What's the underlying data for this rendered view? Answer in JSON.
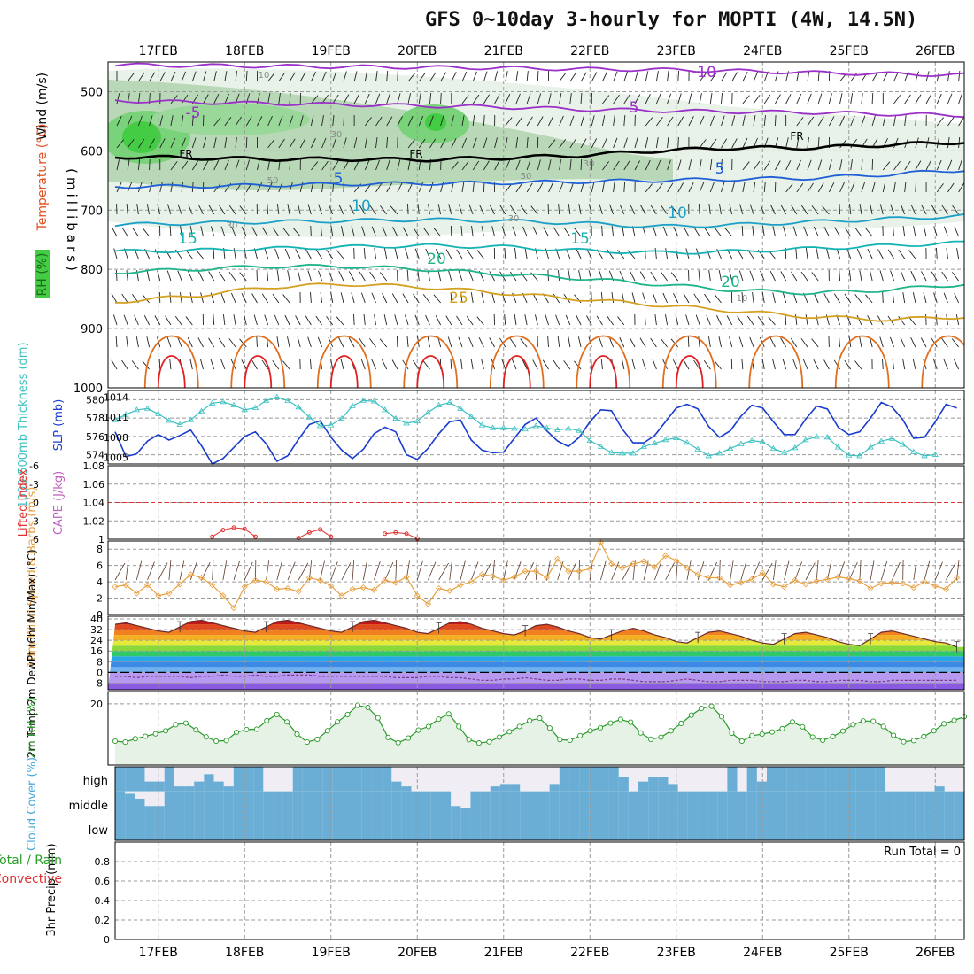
{
  "title": "GFS 0~10day 3-hourly for MOPTI (4W, 14.5N)",
  "colors": {
    "temp_cold": "#9b30c8",
    "temp_cool": "#1f5fd6",
    "temp_mild": "#1ca0c8",
    "temp_15": "#15b3b3",
    "temp_20": "#1fb38a",
    "temp_25": "#d4a020",
    "temp_warm": "#e07020",
    "temp_hot": "#e02020",
    "freezing": "#000000",
    "rh_light": "#e8f2e8",
    "rh_mid": "#b8d8b8",
    "rh_high": "#44cc44",
    "thickness": "#1a3ccc",
    "slp": "#3cc0c0",
    "wind10": "#e8a040",
    "rh2m": "#2a9a2a",
    "cloud": "#6aaed6",
    "cloud_clear": "#f0eef4"
  },
  "chart_data": [
    {
      "type": "line",
      "panel": "upper-air",
      "xlabel": "",
      "ylabel": "(millibars)",
      "legend_labels": [
        "Wind (m/s)",
        "Temperature (°C)",
        "RH (%)"
      ],
      "y_ticks": [
        500,
        600,
        700,
        800,
        900,
        1000
      ],
      "ylim": [
        1000,
        450
      ],
      "x_ticks": [
        "17FEB",
        "18FEB",
        "19FEB",
        "20FEB",
        "21FEB",
        "22FEB",
        "23FEB",
        "24FEB",
        "25FEB",
        "26FEB"
      ],
      "contour_labels": [
        "-10",
        "-5",
        "FR",
        "5",
        "10",
        "15",
        "20",
        "25"
      ],
      "rh_labels": [
        "10",
        "30",
        "50"
      ],
      "isotherms": [
        {
          "name": "-10",
          "values": [
            455,
            456,
            457,
            458,
            459,
            460,
            462,
            463,
            465,
            468,
            470,
            472
          ]
        },
        {
          "name": "-5",
          "values": [
            515,
            518,
            520,
            522,
            524,
            526,
            530,
            532,
            534,
            535,
            538,
            540
          ]
        },
        {
          "name": "FR",
          "values": [
            610,
            612,
            614,
            614,
            615,
            612,
            608,
            600,
            595,
            595,
            590,
            585
          ]
        },
        {
          "name": "5",
          "values": [
            660,
            660,
            658,
            656,
            655,
            654,
            652,
            650,
            648,
            646,
            640,
            632
          ]
        },
        {
          "name": "10",
          "values": [
            725,
            722,
            720,
            718,
            716,
            718,
            722,
            728,
            725,
            720,
            715,
            710
          ]
        },
        {
          "name": "15",
          "values": [
            770,
            768,
            765,
            762,
            760,
            762,
            768,
            772,
            770,
            765,
            760,
            755
          ]
        },
        {
          "name": "20",
          "values": [
            805,
            800,
            795,
            795,
            800,
            808,
            815,
            825,
            835,
            840,
            835,
            825
          ]
        },
        {
          "name": "25",
          "values": [
            855,
            845,
            830,
            825,
            830,
            840,
            850,
            860,
            870,
            880,
            885,
            880
          ]
        }
      ]
    },
    {
      "type": "line",
      "panel": "thickness-slp",
      "left_label": "1000-500mb Thickness (dm)",
      "right_label": "SLP (mb)",
      "left_ticks": [
        574,
        576,
        578,
        580
      ],
      "left_lim": [
        573,
        581
      ],
      "right_ticks": [
        1005,
        1008,
        1011,
        1014
      ],
      "right_lim": [
        1004,
        1015
      ],
      "series": [
        {
          "name": "1000-500mb Thickness (dm)",
          "axis": "left",
          "values": [
            576.5,
            573.8,
            574.1,
            575.5,
            576.2,
            575.6,
            576.1,
            576.7,
            575.0,
            573.0,
            573.6,
            574.8,
            576.0,
            576.5,
            575.2,
            573.3,
            573.9,
            575.7,
            577.3,
            577.7,
            575.9,
            574.5,
            573.6,
            574.6,
            576.3,
            577.0,
            576.5,
            574.0,
            573.5,
            574.7,
            576.3,
            577.6,
            577.8,
            575.6,
            574.5,
            574.2,
            574.3,
            575.8,
            577.3,
            578.0,
            576.6,
            575.5,
            574.9,
            575.9,
            577.6,
            578.9,
            578.8,
            576.8,
            575.3,
            575.3,
            576.1,
            577.6,
            579.1,
            579.5,
            579.0,
            577.1,
            575.9,
            576.6,
            578.2,
            579.4,
            579.1,
            577.6,
            576.2,
            576.2,
            577.9,
            579.3,
            579.0,
            577.0,
            576.2,
            576.5,
            578.0,
            579.7,
            579.2,
            577.8,
            575.8,
            575.9,
            577.6,
            579.5,
            579.1
          ]
        },
        {
          "name": "SLP (mb)",
          "axis": "right",
          "marker": "triangle",
          "values": [
            1010.6,
            1011.4,
            1012.1,
            1012.3,
            1011.5,
            1010.5,
            1009.9,
            1010.6,
            1011.9,
            1013.1,
            1013.3,
            1012.8,
            1012.1,
            1012.4,
            1013.5,
            1014.0,
            1013.5,
            1012.5,
            1011.0,
            1009.7,
            1009.8,
            1010.8,
            1012.7,
            1013.5,
            1013.4,
            1012.1,
            1010.8,
            1010.1,
            1010.4,
            1011.7,
            1012.8,
            1013.2,
            1012.3,
            1011.1,
            1009.8,
            1009.4,
            1009.4,
            1009.3,
            1009.2,
            1009.7,
            1009.4,
            1009.1,
            1009.3,
            1009.0,
            1007.5,
            1006.6,
            1005.7,
            1005.6,
            1005.6,
            1006.6,
            1007.1,
            1007.6,
            1007.9,
            1007.2,
            1006.2,
            1005.2,
            1005.6,
            1006.3,
            1007.0,
            1007.5,
            1007.3,
            1006.3,
            1005.7,
            1006.4,
            1007.6,
            1008.1,
            1008.0,
            1006.5,
            1005.3,
            1005.2,
            1006.5,
            1007.4,
            1007.8,
            1006.9,
            1005.8,
            1005.2,
            1005.4
          ]
        }
      ]
    },
    {
      "type": "line",
      "panel": "stability",
      "left_label": "Lifted Index",
      "right_label": "CAPE (J/kg)",
      "left_ticks": [
        "-6",
        "-3",
        "0",
        "3",
        "6"
      ],
      "left_lim": [
        6,
        -6
      ],
      "right_ticks": [
        "1",
        "1.02",
        "1.04",
        "1.06",
        "1.08"
      ],
      "right_lim": [
        1,
        1.08
      ],
      "series": [
        {
          "name": "Lifted Index",
          "axis": "left",
          "segments": [
            {
              "x_start": 9,
              "values": [
                5.6,
                4.5,
                4.1,
                4.3,
                5.6
              ]
            },
            {
              "x_start": 17,
              "values": [
                5.8,
                4.9,
                4.4,
                5.6
              ]
            },
            {
              "x_start": 25,
              "values": [
                5.1,
                4.9,
                5.1,
                5.9
              ]
            }
          ]
        }
      ]
    },
    {
      "type": "line",
      "panel": "wind10m",
      "ylabel": "10m Wind Speed & Barbs (m/s)",
      "y_ticks": [
        0,
        2,
        4,
        6,
        8
      ],
      "ylim": [
        0,
        9
      ],
      "series": [
        {
          "name": "10m Wind Speed",
          "marker": "diamond",
          "values": [
            3.4,
            3.6,
            2.6,
            3.6,
            2.3,
            2.6,
            3.7,
            4.9,
            4.5,
            3.6,
            2.3,
            0.8,
            3.4,
            4.2,
            4.0,
            3.1,
            3.2,
            2.8,
            4.5,
            4.2,
            3.5,
            2.3,
            3.1,
            3.3,
            3.0,
            4.2,
            3.9,
            4.6,
            2.3,
            1.3,
            3.2,
            2.9,
            3.6,
            4.0,
            4.9,
            4.7,
            4.2,
            4.6,
            5.3,
            5.3,
            4.5,
            6.8,
            5.3,
            5.3,
            5.6,
            8.8,
            6.2,
            5.7,
            6.2,
            6.5,
            5.8,
            7.2,
            6.6,
            5.7,
            4.9,
            4.5,
            4.5,
            3.6,
            3.9,
            4.3,
            5.1,
            3.7,
            3.4,
            4.2,
            3.7,
            4.1,
            4.3,
            4.6,
            4.4,
            4.1,
            3.2,
            3.8,
            3.9,
            3.8,
            3.3,
            4.0,
            3.5,
            3.1,
            4.5
          ]
        }
      ]
    },
    {
      "type": "area",
      "panel": "temperature",
      "ylabel": "2m Temp 2m DewPt (6hr Min/Max) (°C)",
      "y_ticks": [
        -8,
        0,
        8,
        16,
        24,
        32,
        40
      ],
      "ylim": [
        -13,
        42
      ],
      "series": [
        {
          "name": "2m Temp",
          "values": [
            36,
            37,
            35,
            33,
            31,
            30,
            34,
            38,
            39,
            37,
            35,
            33,
            31,
            30,
            34,
            38,
            39,
            37,
            35,
            33,
            31,
            30,
            34,
            38,
            39,
            37,
            35,
            33,
            30,
            29,
            33,
            37,
            38,
            36,
            33,
            31,
            29,
            28,
            31,
            35,
            36,
            34,
            31,
            29,
            26,
            25,
            28,
            31,
            33,
            31,
            28,
            26,
            23,
            22,
            26,
            30,
            31,
            29,
            27,
            24,
            22,
            21,
            25,
            29,
            30,
            28,
            26,
            23,
            21,
            20,
            25,
            30,
            31,
            29,
            27,
            25,
            23,
            22,
            19
          ]
        },
        {
          "name": "2m DewPt",
          "values": [
            -3,
            -3,
            -4,
            -3,
            -3,
            -3,
            -3,
            -4,
            -3,
            -3,
            -2,
            -3,
            -3,
            -2,
            -3,
            -3,
            -2,
            -2,
            -2,
            -3,
            -3,
            -3,
            -3,
            -3,
            -3,
            -3,
            -4,
            -4,
            -4,
            -3,
            -3,
            -4,
            -4,
            -5,
            -6,
            -6,
            -5,
            -5,
            -4,
            -5,
            -6,
            -6,
            -5,
            -5,
            -6,
            -6,
            -5,
            -5,
            -6,
            -7,
            -7,
            -7,
            -6,
            -5,
            -6,
            -7,
            -7,
            -6,
            -6,
            -6,
            -7,
            -7,
            -7,
            -6,
            -6,
            -7,
            -7,
            -6,
            -6,
            -6,
            -7,
            -7,
            -6,
            -6,
            -6,
            -6,
            -6,
            -6,
            -6
          ]
        }
      ]
    },
    {
      "type": "area",
      "panel": "rh2m",
      "ylabel": "2m RH (%)",
      "y_ticks": [
        20
      ],
      "ylim": [
        0,
        24
      ],
      "series": [
        {
          "name": "2m RH",
          "marker": "circle",
          "values": [
            7.8,
            7.5,
            8.6,
            9.4,
            10.2,
            11.2,
            13.2,
            13.7,
            11.5,
            9.2,
            7.8,
            8.0,
            10.7,
            11.6,
            11.7,
            14.5,
            16.5,
            14.1,
            10.1,
            7.5,
            8.4,
            11.2,
            14.1,
            16.5,
            19.5,
            18.8,
            15.4,
            9.0,
            7.3,
            8.8,
            11.4,
            12.6,
            15.0,
            16.7,
            12.6,
            8.3,
            7.2,
            7.6,
            9.1,
            10.9,
            12.6,
            14.5,
            15.3,
            12.1,
            8.3,
            8.1,
            9.6,
            11.2,
            12.2,
            13.7,
            14.9,
            14.0,
            10.5,
            8.4,
            9.1,
            11.2,
            13.6,
            16.3,
            18.5,
            19.2,
            15.8,
            10.4,
            7.8,
            9.6,
            10.1,
            10.8,
            11.9,
            14.1,
            12.5,
            9.1,
            8.1,
            9.3,
            11.1,
            13.2,
            14.4,
            14.3,
            12.6,
            9.7,
            7.6,
            8.0,
            9.3,
            11.2,
            13.5,
            14.6,
            15.8
          ]
        }
      ]
    },
    {
      "type": "heatmap",
      "panel": "cloud-cover",
      "ylabel": "Cloud Cover (%)",
      "rows": [
        "high",
        "middle",
        "low"
      ],
      "high_row": [
        100,
        100,
        100,
        40,
        40,
        100,
        20,
        20,
        40,
        70,
        40,
        20,
        100,
        100,
        100,
        0,
        0,
        0,
        100,
        100,
        100,
        100,
        100,
        100,
        100,
        100,
        100,
        100,
        40,
        20,
        0,
        0,
        0,
        0,
        0,
        0,
        0,
        0,
        20,
        30,
        30,
        0,
        0,
        0,
        30,
        100,
        100,
        100,
        100,
        100,
        100,
        60,
        0,
        40,
        60,
        60,
        30,
        0,
        0,
        0,
        0,
        0,
        100,
        0,
        100,
        40,
        100,
        100,
        100,
        100,
        100,
        100,
        100,
        100,
        100,
        100,
        100,
        100,
        0,
        0,
        0,
        0,
        0,
        20,
        0,
        0
      ],
      "middle_row": [
        100,
        90,
        70,
        40,
        40,
        100,
        100,
        100,
        100,
        100,
        100,
        100,
        100,
        100,
        100,
        100,
        100,
        100,
        100,
        100,
        100,
        100,
        100,
        100,
        100,
        100,
        100,
        100,
        100,
        100,
        100,
        100,
        100,
        100,
        40,
        30,
        100,
        100,
        100,
        100,
        100,
        100,
        100,
        100,
        100,
        100,
        100,
        100,
        100,
        100,
        100,
        100,
        100,
        100,
        100,
        100,
        100,
        100,
        100,
        100,
        100,
        100,
        100,
        100,
        100,
        100,
        100,
        100,
        100,
        100,
        100,
        100,
        100,
        100,
        100,
        100,
        100,
        100,
        100,
        100,
        100,
        100,
        100,
        100,
        100,
        100
      ],
      "low_row": [
        100,
        100,
        100,
        100,
        100,
        100,
        100,
        100,
        100,
        100,
        100,
        100,
        100,
        100,
        100,
        100,
        100,
        100,
        100,
        100,
        100,
        100,
        100,
        100,
        100,
        100,
        100,
        100,
        100,
        100,
        100,
        100,
        100,
        100,
        100,
        100,
        100,
        100,
        100,
        100,
        100,
        100,
        100,
        100,
        100,
        100,
        100,
        100,
        100,
        100,
        100,
        100,
        100,
        100,
        100,
        100,
        100,
        100,
        100,
        100,
        100,
        100,
        100,
        100,
        100,
        100,
        100,
        100,
        100,
        100,
        100,
        100,
        100,
        100,
        100,
        100,
        100,
        100,
        100,
        100,
        100,
        100,
        100,
        100,
        100,
        100
      ]
    },
    {
      "type": "bar",
      "panel": "precip",
      "ylabel": "3hr Precip (mm)",
      "legend_labels": [
        "Total / Rain",
        "Convective"
      ],
      "y_ticks": [
        "0",
        "0.2",
        "0.4",
        "0.6",
        "0.8"
      ],
      "ylim": [
        0,
        1
      ],
      "annotation": "Run Total = 0",
      "values": []
    }
  ]
}
